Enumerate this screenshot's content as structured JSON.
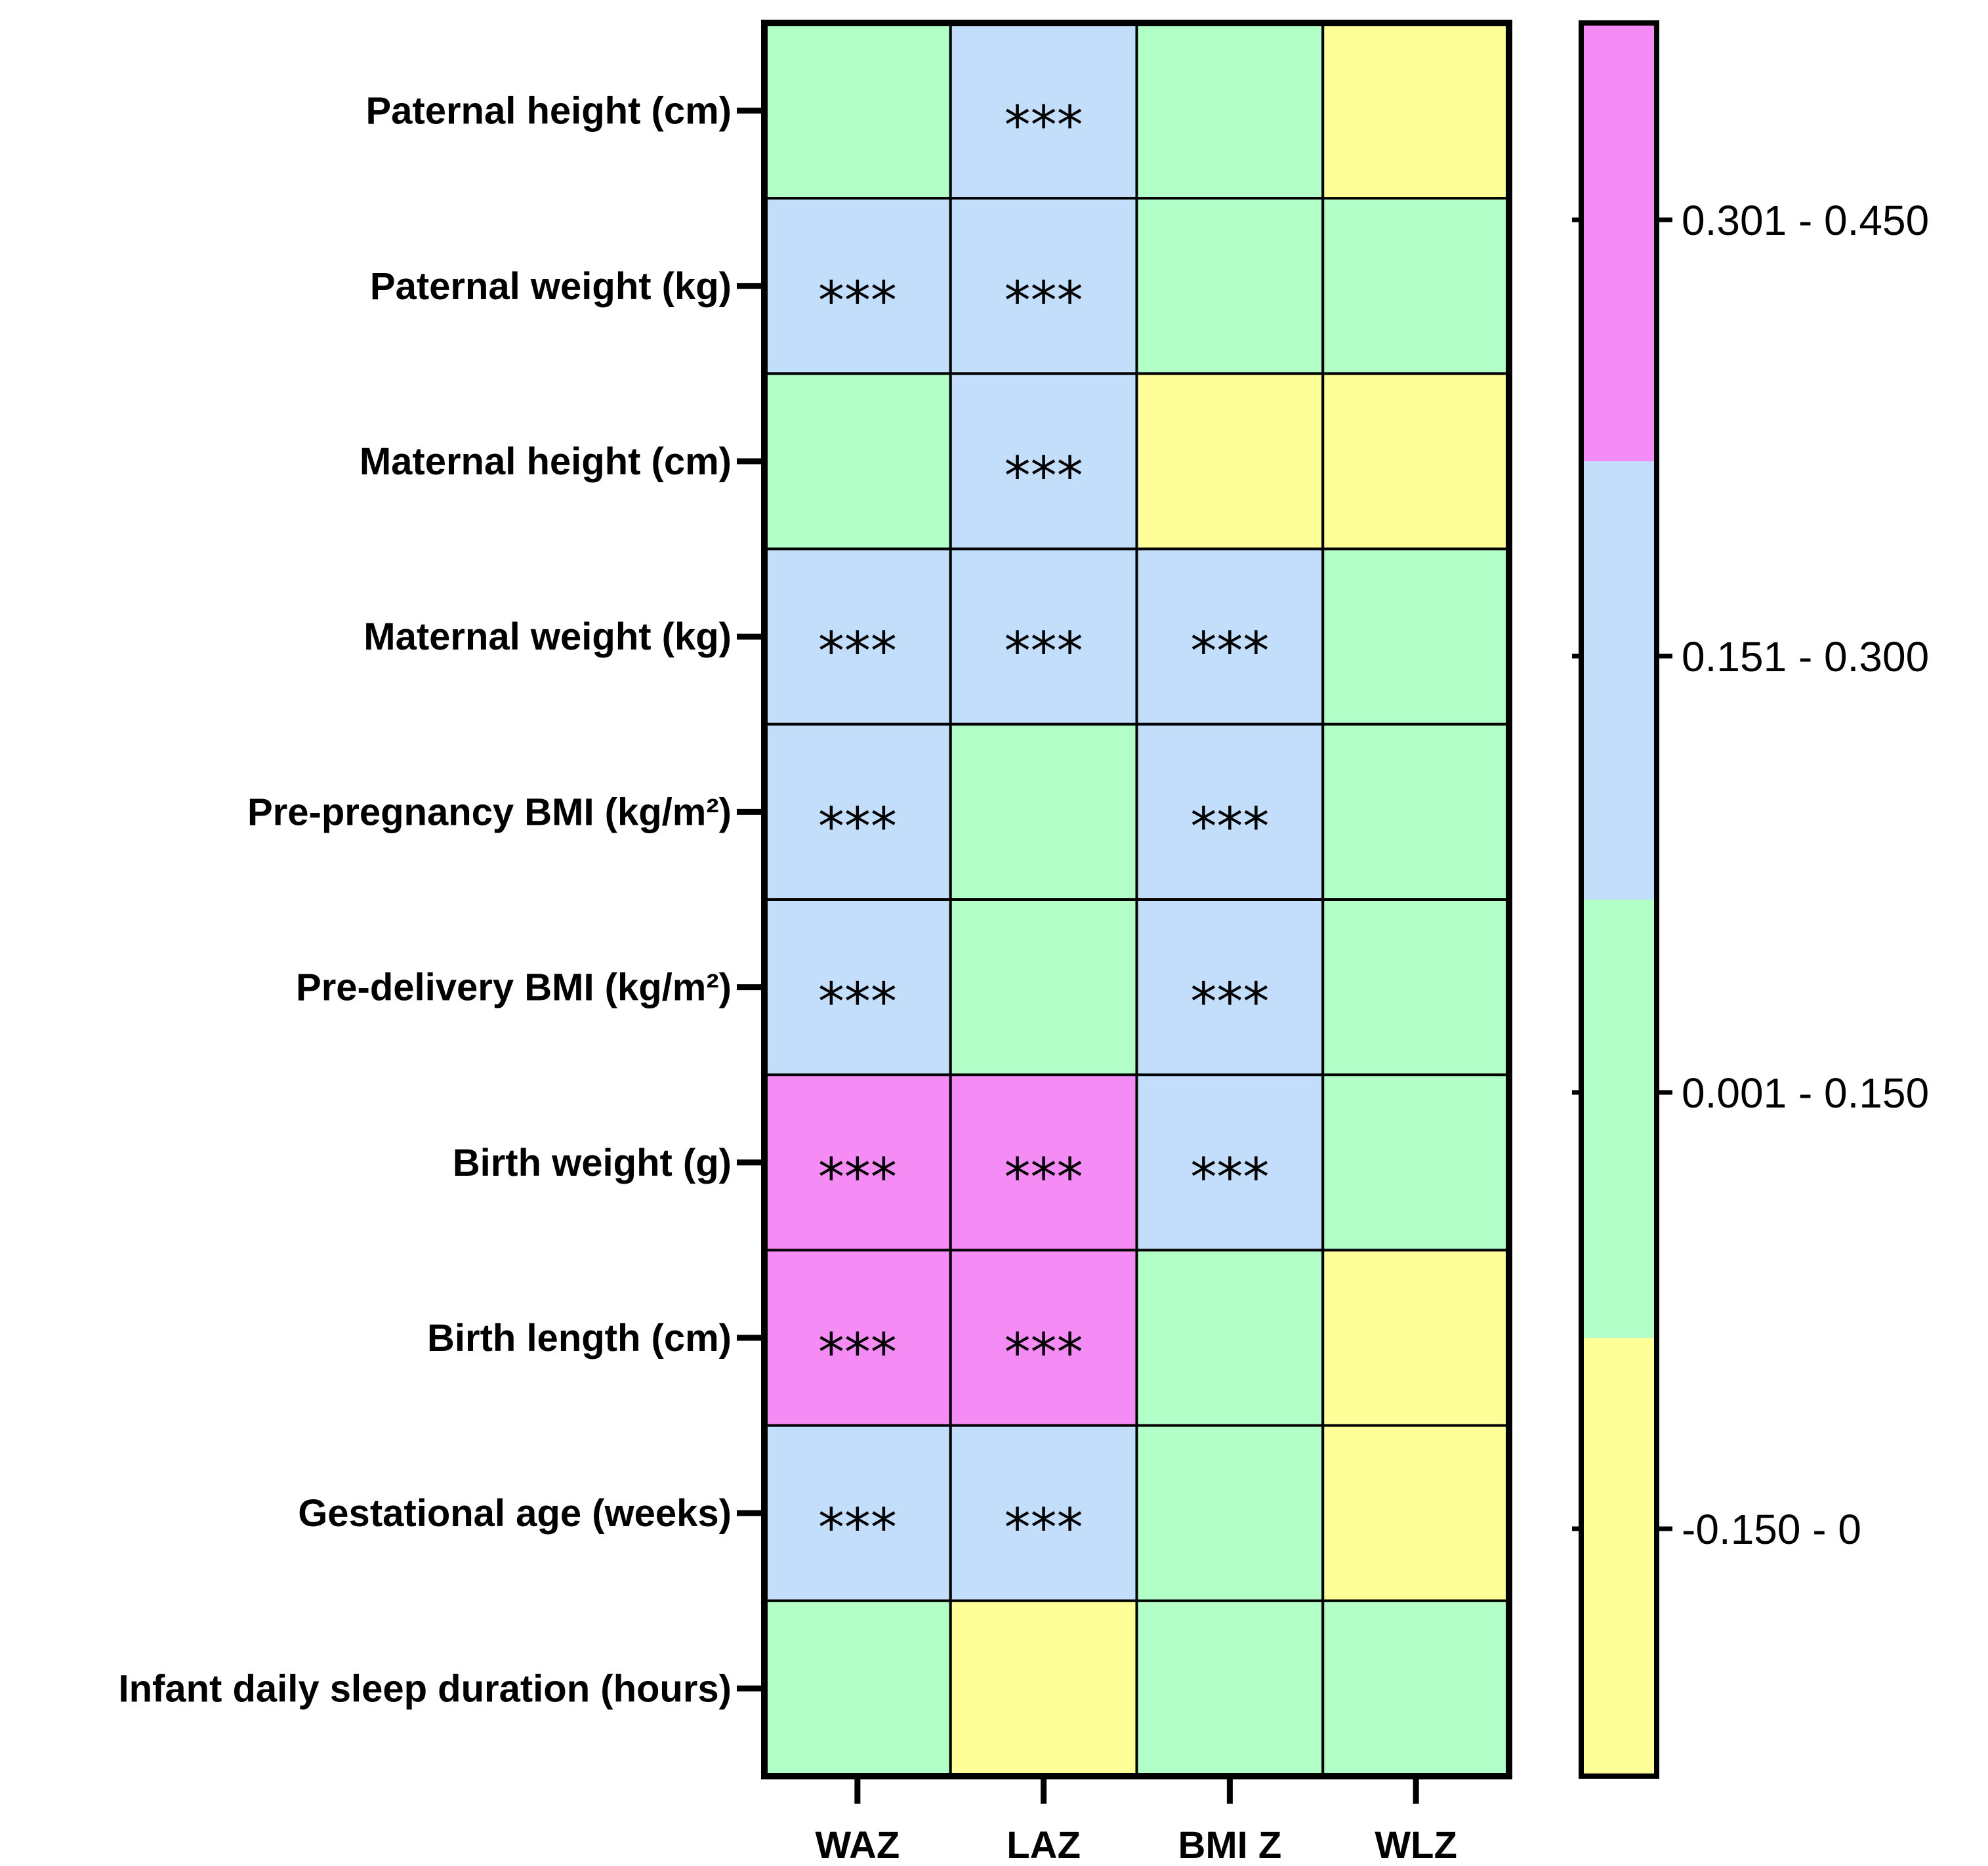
{
  "chart_data": {
    "type": "heatmap",
    "rows": [
      "Paternal height (cm)",
      "Paternal weight (kg)",
      "Maternal height (cm)",
      "Maternal weight (kg)",
      "Pre-pregnancy BMI (kg/m²)",
      "Pre-delivery BMI (kg/m²)",
      "Birth weight (g)",
      "Birth length (cm)",
      "Gestational age (weeks)",
      "Infant daily sleep duration (hours)"
    ],
    "columns": [
      "WAZ",
      "LAZ",
      "BMI Z",
      "WLZ"
    ],
    "bins": [
      {
        "label": "-0.150 - 0",
        "range": [
          -0.15,
          0
        ],
        "color": "#ffff99"
      },
      {
        "label": "0.001 - 0.150",
        "range": [
          0.001,
          0.15
        ],
        "color": "#b3ffc8"
      },
      {
        "label": "0.151 - 0.300",
        "range": [
          0.151,
          0.3
        ],
        "color": "#c3defa"
      },
      {
        "label": "0.301 - 0.450",
        "range": [
          0.301,
          0.45
        ],
        "color": "#f58cf5"
      }
    ],
    "cell_bins": [
      [
        1,
        2,
        1,
        0
      ],
      [
        2,
        2,
        1,
        1
      ],
      [
        1,
        2,
        0,
        0
      ],
      [
        2,
        2,
        2,
        1
      ],
      [
        2,
        1,
        2,
        1
      ],
      [
        2,
        1,
        2,
        1
      ],
      [
        3,
        3,
        2,
        1
      ],
      [
        3,
        3,
        1,
        0
      ],
      [
        2,
        2,
        1,
        0
      ],
      [
        1,
        0,
        1,
        1
      ]
    ],
    "significance": [
      [
        "",
        "***",
        "",
        ""
      ],
      [
        "***",
        "***",
        "",
        ""
      ],
      [
        "",
        "***",
        "",
        ""
      ],
      [
        "***",
        "***",
        "***",
        ""
      ],
      [
        "***",
        "",
        "***",
        ""
      ],
      [
        "***",
        "",
        "***",
        ""
      ],
      [
        "***",
        "***",
        "***",
        ""
      ],
      [
        "***",
        "***",
        "",
        ""
      ],
      [
        "***",
        "***",
        "",
        ""
      ],
      [
        "",
        "",
        "",
        ""
      ]
    ],
    "legend_labels_top_to_bottom": [
      "0.301 - 0.450",
      "0.151 - 0.300",
      "0.001 - 0.150",
      "-0.150 - 0"
    ]
  }
}
